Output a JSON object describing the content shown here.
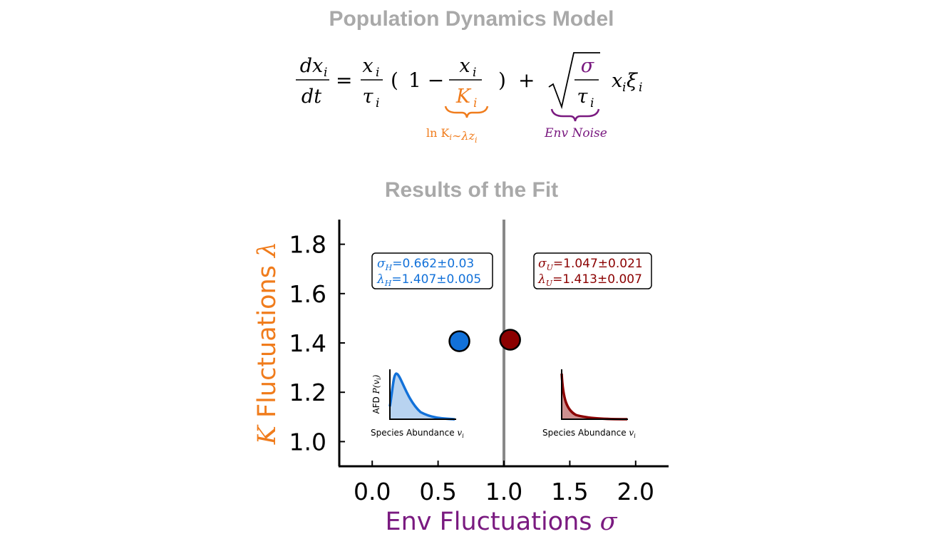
{
  "header": {
    "title": "Population Dynamics Model"
  },
  "equation": {
    "lhs_num": "dx",
    "lhs_den": "dt",
    "sub_i": "i",
    "growth_num": "x",
    "growth_den": "τ",
    "open_paren": "(",
    "one_minus": "1 −",
    "cap_num": "x",
    "cap_den": "K",
    "close_paren": ")",
    "plus": "+",
    "noise_num": "σ",
    "noise_den": "τ",
    "noise_tail": "x",
    "noise_xi": "ξ",
    "cap_annotation": "ln K",
    "cap_annotation_rest": "∼λz",
    "noise_annotation": "Env Noise"
  },
  "section": {
    "title": "Results of the Fit"
  },
  "colors": {
    "orange": "#f07c1c",
    "purple": "#7a1a80",
    "blue": "#1271d9",
    "blue_fill": "#b8d3f0",
    "red": "#8b0000",
    "red_fill": "#cd9090",
    "gray_line": "#888888"
  },
  "chart_data": {
    "type": "scatter",
    "xlabel": "Env  Fluctuations σ",
    "ylabel": "K Fluctuations λ",
    "xlim": [
      -0.25,
      2.25
    ],
    "ylim": [
      0.9,
      1.9
    ],
    "x_ticks": [
      "0.0",
      "0.5",
      "1.0",
      "1.5",
      "2.0"
    ],
    "x_tick_values": [
      0.0,
      0.5,
      1.0,
      1.5,
      2.0
    ],
    "y_ticks": [
      "1.0",
      "1.2",
      "1.4",
      "1.6",
      "1.8"
    ],
    "y_tick_values": [
      1.0,
      1.2,
      1.4,
      1.6,
      1.8
    ],
    "vline_x": 1.0,
    "grid": false,
    "points": [
      {
        "x": 0.662,
        "y": 1.407,
        "color": "#1271d9"
      },
      {
        "x": 1.047,
        "y": 1.413,
        "color": "#8b0000"
      }
    ],
    "annotations": [
      {
        "sym1": "σ",
        "sub1": "H",
        "val1": "=0.662±0.03",
        "sym2": "λ",
        "sub2": "H",
        "val2": "=1.407±0.005",
        "color": "#1271d9"
      },
      {
        "sym1": "σ",
        "sub1": "U",
        "val1": "=1.047±0.021",
        "sym2": "λ",
        "sub2": "U",
        "val2": "=1.413±0.007",
        "color": "#8b0000"
      }
    ],
    "insets": [
      {
        "ylabel": "AFD",
        "ylabel_sym": "P(v",
        "xlabel": "Species Abundance",
        "xlabel_sym": "v",
        "sub": "i"
      },
      {
        "xlabel": "Species Abundance",
        "xlabel_sym": "v",
        "sub": "i"
      }
    ]
  }
}
